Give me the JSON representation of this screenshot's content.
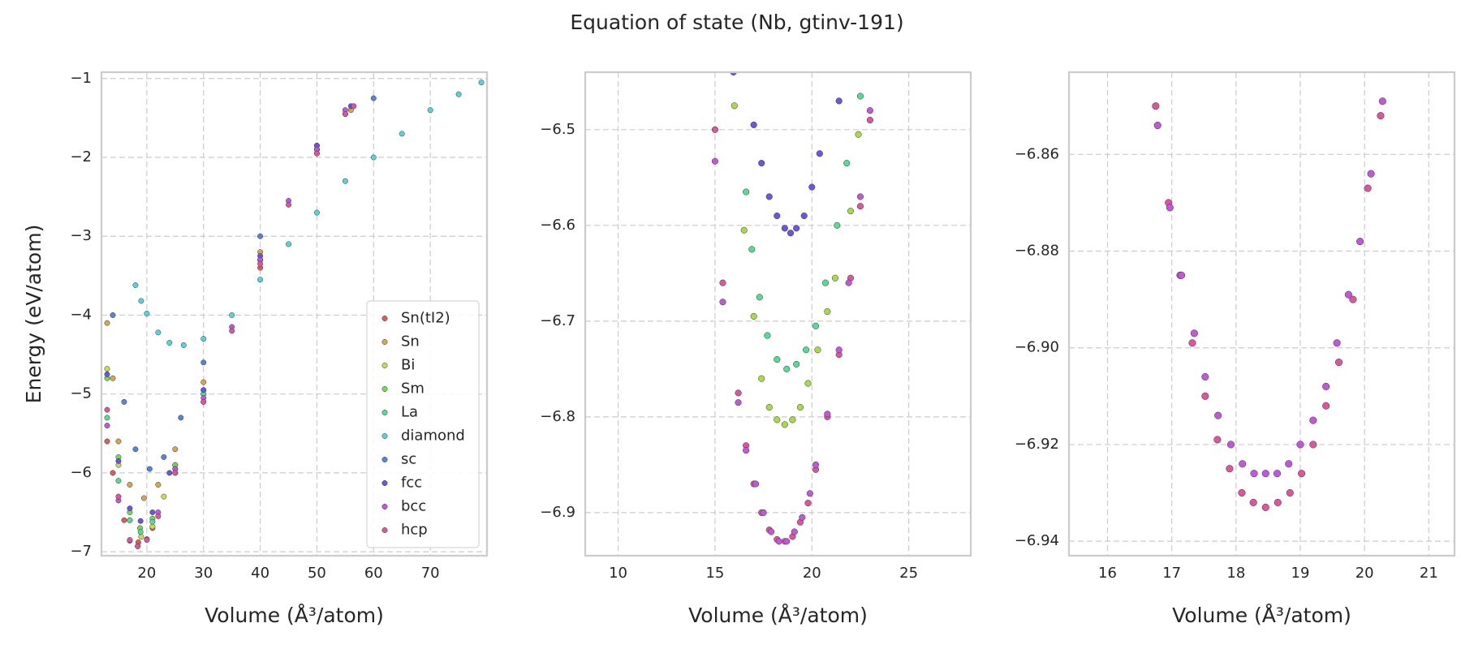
{
  "title": "Equation of state (Nb, gtinv-191)",
  "chart_data": [
    {
      "type": "scatter",
      "xlabel": "Volume (Å³/atom)",
      "ylabel": "Energy (eV/atom)",
      "xlim": [
        12,
        80
      ],
      "ylim": [
        -7.05,
        -0.92
      ],
      "xticks": [
        20,
        30,
        40,
        50,
        60,
        70
      ],
      "yticks": [
        {
          "value": -7,
          "label": "−7"
        },
        {
          "value": -6,
          "label": "−6"
        },
        {
          "value": -5,
          "label": "−5"
        },
        {
          "value": -4,
          "label": "−4"
        },
        {
          "value": -3,
          "label": "−3"
        },
        {
          "value": -2,
          "label": "−2"
        },
        {
          "value": -1,
          "label": "−1"
        }
      ],
      "grid": true,
      "legend": "lower right",
      "series": [
        {
          "name": "Sn(tI2)",
          "color": "#db5f57",
          "x": [
            13,
            14,
            16,
            18.5,
            21,
            25,
            30,
            40,
            50,
            55
          ],
          "y": [
            -5.6,
            -6.0,
            -6.6,
            -6.88,
            -6.7,
            -6.0,
            -5.1,
            -3.4,
            -1.95,
            -1.45
          ]
        },
        {
          "name": "Sn",
          "color": "#d5a553",
          "x": [
            13,
            14,
            15,
            17,
            19.5,
            22,
            25,
            30,
            40,
            50,
            56
          ],
          "y": [
            -4.1,
            -4.8,
            -5.6,
            -6.15,
            -6.32,
            -6.15,
            -5.7,
            -4.85,
            -3.2,
            -1.85,
            -1.4
          ]
        },
        {
          "name": "Bi",
          "color": "#c3db57",
          "x": [
            13,
            15,
            17,
            19,
            21,
            23,
            25,
            30,
            40,
            50,
            55
          ],
          "y": [
            -4.68,
            -5.9,
            -6.6,
            -6.81,
            -6.68,
            -6.3,
            -5.9,
            -5.0,
            -3.3,
            -1.9,
            -1.45
          ]
        },
        {
          "name": "Sm",
          "color": "#71db57",
          "x": [
            13,
            15,
            17,
            18.8,
            21,
            25,
            30,
            40,
            50
          ],
          "y": [
            -4.8,
            -5.8,
            -6.5,
            -6.7,
            -6.58,
            -5.9,
            -4.95,
            -3.3,
            -1.9
          ]
        },
        {
          "name": "La",
          "color": "#57db94",
          "x": [
            13,
            15,
            17,
            18.9,
            21,
            25,
            30,
            40,
            50
          ],
          "y": [
            -5.3,
            -6.1,
            -6.6,
            -6.75,
            -6.62,
            -5.95,
            -5.0,
            -3.3,
            -1.9
          ]
        },
        {
          "name": "diamond",
          "color": "#57d3db",
          "x": [
            18,
            19,
            20,
            22,
            24,
            26.5,
            30,
            35,
            40,
            45,
            50,
            55,
            60,
            65,
            70,
            75,
            79
          ],
          "y": [
            -3.62,
            -3.82,
            -3.98,
            -4.22,
            -4.35,
            -4.38,
            -4.3,
            -4.0,
            -3.55,
            -3.1,
            -2.7,
            -2.3,
            -2.0,
            -1.7,
            -1.4,
            -1.2,
            -1.05
          ]
        },
        {
          "name": "sc",
          "color": "#5784db",
          "x": [
            14,
            16,
            18,
            20.5,
            23,
            26,
            30,
            40,
            50,
            60
          ],
          "y": [
            -4.0,
            -5.1,
            -5.7,
            -5.95,
            -5.8,
            -5.3,
            -4.6,
            -3.0,
            -1.9,
            -1.25
          ]
        },
        {
          "name": "fcc",
          "color": "#6a57db",
          "x": [
            13,
            15,
            17,
            18.9,
            21,
            24,
            30,
            40,
            50,
            56
          ],
          "y": [
            -4.75,
            -5.85,
            -6.45,
            -6.61,
            -6.5,
            -6.0,
            -4.95,
            -3.25,
            -1.85,
            -1.35
          ]
        },
        {
          "name": "bcc",
          "color": "#c157db",
          "x": [
            13,
            15,
            17,
            18.4,
            20,
            22,
            25,
            30,
            35,
            40,
            45,
            50,
            55
          ],
          "y": [
            -5.4,
            -6.35,
            -6.86,
            -6.93,
            -6.84,
            -6.5,
            -5.95,
            -5.05,
            -4.15,
            -3.3,
            -2.55,
            -1.9,
            -1.4
          ]
        },
        {
          "name": "hcp",
          "color": "#db579c",
          "x": [
            13,
            15,
            17,
            18.4,
            20,
            22,
            25,
            30,
            35,
            40,
            45,
            50,
            55,
            56.5
          ],
          "y": [
            -5.2,
            -6.3,
            -6.85,
            -6.93,
            -6.85,
            -6.55,
            -6.0,
            -5.1,
            -4.2,
            -3.35,
            -2.6,
            -1.95,
            -1.45,
            -1.35
          ]
        }
      ]
    },
    {
      "type": "scatter",
      "xlabel": "Volume (Å³/atom)",
      "xlim": [
        8.3,
        28.2
      ],
      "ylim": [
        -6.945,
        -6.44
      ],
      "xticks": [
        10,
        15,
        20,
        25
      ],
      "yticks": [
        {
          "value": -6.9,
          "label": "−6.9"
        },
        {
          "value": -6.8,
          "label": "−6.8"
        },
        {
          "value": -6.7,
          "label": "−6.7"
        },
        {
          "value": -6.6,
          "label": "−6.6"
        },
        {
          "value": -6.5,
          "label": "−6.5"
        }
      ],
      "grid": true,
      "series": [
        {
          "color": "#6a57db",
          "x": [
            15.95,
            17,
            17.4,
            17.8,
            18.2,
            18.6,
            18.9,
            19.2,
            19.6,
            20.0,
            20.4,
            21.4
          ],
          "y": [
            -6.44,
            -6.495,
            -6.535,
            -6.57,
            -6.59,
            -6.603,
            -6.608,
            -6.603,
            -6.59,
            -6.56,
            -6.525,
            -6.47
          ]
        },
        {
          "color": "#57db94",
          "x": [
            16.6,
            16.9,
            17.3,
            17.7,
            18.2,
            18.7,
            19.2,
            19.7,
            20.2,
            20.7,
            21.3,
            21.8,
            22.5
          ],
          "y": [
            -6.565,
            -6.625,
            -6.675,
            -6.715,
            -6.74,
            -6.75,
            -6.745,
            -6.73,
            -6.705,
            -6.66,
            -6.6,
            -6.535,
            -6.465
          ]
        },
        {
          "color": "#a8d94c",
          "x": [
            16.0,
            16.5,
            17.0,
            17.4,
            17.8,
            18.2,
            18.6,
            19.0,
            19.4,
            19.8,
            20.3,
            20.8,
            21.2,
            22.0,
            22.4
          ],
          "y": [
            -6.475,
            -6.605,
            -6.695,
            -6.76,
            -6.79,
            -6.803,
            -6.808,
            -6.803,
            -6.79,
            -6.765,
            -6.73,
            -6.69,
            -6.655,
            -6.585,
            -6.505
          ]
        },
        {
          "color": "#db579c",
          "x": [
            15.0,
            15.4,
            16.2,
            16.6,
            17.0,
            17.4,
            17.8,
            18.2,
            18.6,
            19.0,
            19.4,
            19.8,
            20.2,
            20.8,
            21.4,
            22.0,
            22.5,
            23.0
          ],
          "y": [
            -6.5,
            -6.66,
            -6.775,
            -6.83,
            -6.87,
            -6.9,
            -6.918,
            -6.928,
            -6.93,
            -6.925,
            -6.91,
            -6.89,
            -6.855,
            -6.8,
            -6.735,
            -6.655,
            -6.58,
            -6.49
          ]
        },
        {
          "color": "#c157db",
          "x": [
            15.0,
            15.4,
            16.2,
            16.6,
            17.1,
            17.5,
            17.9,
            18.3,
            18.7,
            19.1,
            19.5,
            19.9,
            20.2,
            20.8,
            21.4,
            21.9,
            22.5,
            23.0
          ],
          "y": [
            -6.533,
            -6.68,
            -6.785,
            -6.835,
            -6.87,
            -6.9,
            -6.92,
            -6.93,
            -6.93,
            -6.92,
            -6.905,
            -6.88,
            -6.85,
            -6.797,
            -6.73,
            -6.66,
            -6.57,
            -6.48
          ]
        }
      ]
    },
    {
      "type": "scatter",
      "xlabel": "Volume (Å³/atom)",
      "xlim": [
        15.4,
        21.4
      ],
      "ylim": [
        -6.943,
        -6.843
      ],
      "xticks": [
        16,
        17,
        18,
        19,
        20,
        21
      ],
      "yticks": [
        {
          "value": -6.94,
          "label": "−6.94"
        },
        {
          "value": -6.92,
          "label": "−6.92"
        },
        {
          "value": -6.9,
          "label": "−6.90"
        },
        {
          "value": -6.88,
          "label": "−6.88"
        },
        {
          "value": -6.86,
          "label": "−6.86"
        }
      ],
      "grid": true,
      "series": [
        {
          "color": "#db579c",
          "x": [
            16.75,
            16.95,
            17.13,
            17.32,
            17.52,
            17.71,
            17.9,
            18.09,
            18.27,
            18.46,
            18.65,
            18.84,
            19.02,
            19.2,
            19.4,
            19.6,
            19.82,
            20.05,
            20.25
          ],
          "y": [
            -6.85,
            -6.87,
            -6.885,
            -6.899,
            -6.91,
            -6.919,
            -6.925,
            -6.93,
            -6.932,
            -6.933,
            -6.932,
            -6.93,
            -6.926,
            -6.92,
            -6.912,
            -6.903,
            -6.89,
            -6.867,
            -6.852
          ]
        },
        {
          "color": "#c157db",
          "x": [
            16.78,
            16.97,
            17.15,
            17.35,
            17.52,
            17.72,
            17.92,
            18.1,
            18.28,
            18.46,
            18.64,
            18.82,
            19.0,
            19.2,
            19.4,
            19.57,
            19.75,
            19.93,
            20.1,
            20.28
          ],
          "y": [
            -6.854,
            -6.871,
            -6.885,
            -6.897,
            -6.906,
            -6.914,
            -6.92,
            -6.924,
            -6.926,
            -6.926,
            -6.926,
            -6.924,
            -6.92,
            -6.915,
            -6.908,
            -6.899,
            -6.889,
            -6.878,
            -6.864,
            -6.849
          ]
        }
      ]
    }
  ]
}
